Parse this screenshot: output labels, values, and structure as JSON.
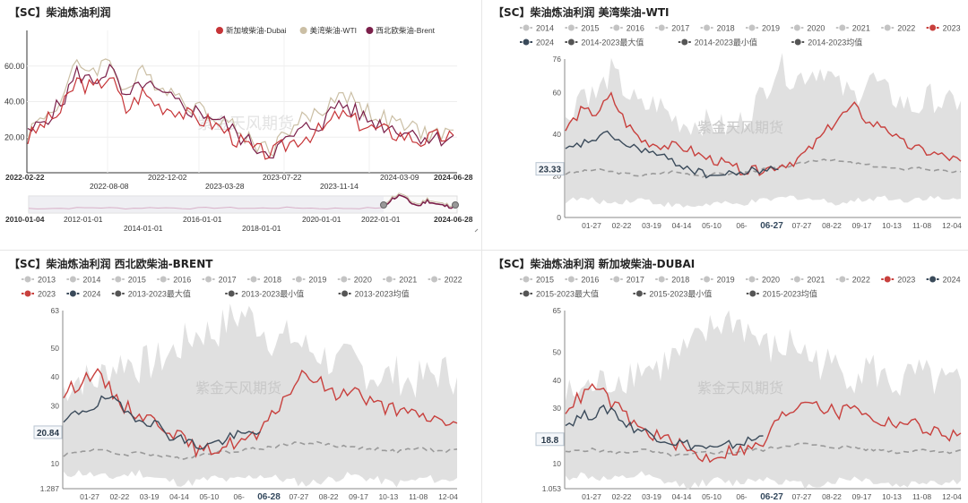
{
  "colors": {
    "gray": "#c4c4c4",
    "band": "#dddddd",
    "red": "#c8403d",
    "navy": "#3a4a5a",
    "avg": "#9a9a9a",
    "dubai": "#c63437",
    "wti": "#cbbfa5",
    "brent": "#7b1f4a",
    "axis": "#666666"
  },
  "watermark": "紫金天风期货",
  "charts": [
    {
      "id": "p1",
      "title": "【SC】柴油炼油利润",
      "chart_data": {
        "type": "line",
        "title": "【SC】柴油炼油利润",
        "xlabel": "",
        "ylabel": "",
        "ylim": [
          0,
          80
        ],
        "y_ticks": [
          "20.00",
          "40.00",
          "60.00"
        ],
        "x_ticks_row1": [
          "2022-02-22",
          "2022-12-02",
          "2023-07-22",
          "2024-03-09",
          "2024-06-28"
        ],
        "x_ticks_row2": [
          "2022-08-08",
          "2023-03-28",
          "2023-11-14"
        ],
        "legend": [
          "新加坡柴油-Dubai",
          "美湾柴油-WTI",
          "西北欧柴油-Brent"
        ],
        "legend_position": "top-right",
        "series": [
          {
            "name": "新加坡柴油-Dubai",
            "values": [
              19,
              28,
              34,
              52,
              47,
              55,
              35,
              45,
              38,
              36,
              31,
              29,
              24,
              17,
              12,
              11,
              17,
              21,
              24,
              33,
              29,
              25,
              23,
              21,
              18,
              20,
              21
            ]
          },
          {
            "name": "美湾柴油-WTI",
            "values": [
              23,
              32,
              40,
              61,
              58,
              63,
              46,
              56,
              50,
              45,
              38,
              34,
              30,
              22,
              16,
              14,
              25,
              31,
              34,
              46,
              40,
              33,
              29,
              26,
              23,
              21,
              24
            ]
          },
          {
            "name": "西北欧柴油-Brent",
            "values": [
              21,
              30,
              38,
              56,
              51,
              59,
              40,
              51,
              44,
              40,
              35,
              33,
              28,
              20,
              14,
              12,
              19,
              25,
              28,
              40,
              34,
              29,
              26,
              24,
              21,
              19,
              21
            ]
          }
        ],
        "navigator": {
          "labels_top": [
            "2010-01-04",
            "2012-01-01",
            "2016-01-01",
            "2020-01-01",
            "2022-01-01",
            "2024-06-28"
          ],
          "labels_bottom": [
            "2014-01-01",
            "2018-01-01"
          ]
        }
      }
    },
    {
      "id": "p2",
      "title": "【SC】柴油炼油利润 美湾柴油-WTI",
      "chart_data": {
        "type": "line",
        "title": "【SC】柴油炼油利润 美湾柴油-WTI",
        "xlabel": "",
        "ylabel": "",
        "ylim": [
          0,
          76
        ],
        "y_ticks": [
          "0",
          "20",
          "40",
          "60",
          "76"
        ],
        "current_value": "23.33",
        "x_ticks": [
          "01-27",
          "02-22",
          "03-19",
          "04-14",
          "05-10",
          "06-",
          "06-27",
          "07-27",
          "08-22",
          "09-17",
          "10-13",
          "11-08",
          "12-04"
        ],
        "highlight_tick": "06-27",
        "legend_row1": [
          "2014",
          "2015",
          "2016",
          "2017",
          "2018",
          "2019",
          "2020",
          "2021",
          "2022",
          "2023"
        ],
        "legend_row2": [
          "2024",
          "2014-2023最大值",
          "2014-2023最小值",
          "2014-2023均值"
        ],
        "series": [
          {
            "name": "2023",
            "values": [
              42,
              51,
              50,
              58,
              45,
              37,
              35,
              34,
              33,
              29,
              27,
              24,
              22,
              23,
              25,
              27,
              32,
              40,
              48,
              53,
              45,
              44,
              36,
              33,
              31,
              29,
              27
            ]
          },
          {
            "name": "2024",
            "values": [
              32,
              35,
              38,
              40,
              34,
              33,
              30,
              27,
              24,
              21,
              20,
              21,
              22,
              23,
              23
            ]
          },
          {
            "name": "2014-2023最大值",
            "values": [
              45,
              62,
              58,
              70,
              60,
              52,
              55,
              48,
              45,
              46,
              44,
              42,
              50,
              60,
              74,
              66,
              70,
              72,
              62,
              58,
              68,
              60,
              56,
              52,
              58,
              54,
              56
            ]
          },
          {
            "name": "2014-2023最小值",
            "values": [
              8,
              9,
              8,
              7,
              8,
              9,
              7,
              6,
              5,
              6,
              7,
              6,
              7,
              8,
              9,
              10,
              9,
              8,
              7,
              8,
              9,
              10,
              8,
              9,
              10,
              8,
              9
            ]
          },
          {
            "name": "2014-2023均值",
            "values": [
              21,
              22,
              23,
              22,
              21,
              20,
              21,
              22,
              21,
              20,
              21,
              21,
              22,
              23,
              24,
              25,
              27,
              28,
              27,
              26,
              25,
              24,
              23,
              24,
              23,
              22,
              22
            ]
          }
        ]
      }
    },
    {
      "id": "p3",
      "title": "【SC】柴油炼油利润 西北欧柴油-BRENT",
      "chart_data": {
        "type": "line",
        "title": "【SC】柴油炼油利润 西北欧柴油-BRENT",
        "xlabel": "",
        "ylabel": "",
        "ylim": [
          1.287,
          63
        ],
        "y_ticks": [
          "1.287",
          "10",
          "20",
          "30",
          "40",
          "50",
          "63"
        ],
        "current_value": "20.84",
        "x_ticks": [
          "01-27",
          "02-22",
          "03-19",
          "04-14",
          "05-10",
          "06-",
          "06-28",
          "07-27",
          "08-22",
          "09-17",
          "10-13",
          "11-08",
          "12-04"
        ],
        "highlight_tick": "06-28",
        "legend_row1": [
          "2013",
          "2014",
          "2015",
          "2016",
          "2017",
          "2018",
          "2019",
          "2020",
          "2021",
          "2022"
        ],
        "legend_row2": [
          "2023",
          "2024",
          "2013-2023最大值",
          "2013-2023最小值",
          "2013-2023均值"
        ],
        "series": [
          {
            "name": "2023",
            "values": [
              34,
              38,
              42,
              36,
              30,
              27,
              25,
              22,
              18,
              14,
              15,
              17,
              18,
              20,
              28,
              36,
              41,
              38,
              33,
              37,
              32,
              30,
              28,
              27,
              26,
              25,
              24
            ]
          },
          {
            "name": "2024",
            "values": [
              24,
              28,
              30,
              33,
              28,
              26,
              24,
              20,
              18,
              16,
              17,
              19,
              20,
              21
            ]
          },
          {
            "name": "2013-2023最大值",
            "values": [
              36,
              40,
              38,
              43,
              46,
              44,
              45,
              48,
              52,
              56,
              55,
              60,
              62,
              58,
              52,
              54,
              50,
              48,
              44,
              46,
              42,
              40,
              41,
              38,
              40,
              42,
              40
            ]
          },
          {
            "name": "2013-2023最小值",
            "values": [
              6,
              7,
              6,
              5,
              6,
              7,
              5,
              4,
              3,
              4,
              5,
              4,
              5,
              6,
              5,
              4,
              3,
              4,
              5,
              6,
              5,
              4,
              3,
              4,
              5,
              4,
              5
            ]
          },
          {
            "name": "2013-2023均值",
            "values": [
              13,
              14,
              15,
              14,
              13,
              14,
              13,
              12,
              12,
              13,
              14,
              14,
              15,
              15,
              16,
              17,
              17,
              17,
              16,
              16,
              15,
              15,
              14,
              15,
              15,
              14,
              15
            ]
          }
        ]
      }
    },
    {
      "id": "p4",
      "title": "【SC】柴油炼油利润 新加坡柴油-DUBAI",
      "chart_data": {
        "type": "line",
        "title": "【SC】柴油炼油利润 新加坡柴油-DUBAI",
        "xlabel": "",
        "ylabel": "",
        "ylim": [
          1.053,
          65
        ],
        "y_ticks": [
          "1.053",
          "10",
          "20",
          "30",
          "40",
          "50",
          "65"
        ],
        "current_value": "18.8",
        "x_ticks": [
          "01-27",
          "02-22",
          "03-19",
          "04-14",
          "05-10",
          "06-",
          "06-27",
          "07-27",
          "08-22",
          "09-17",
          "10-13",
          "11-08",
          "12-04"
        ],
        "highlight_tick": "06-27",
        "legend_row1": [
          "2015",
          "2016",
          "2017",
          "2018",
          "2019",
          "2020",
          "2021",
          "2022",
          "2023",
          "2024"
        ],
        "legend_row2": [
          "2015-2023最大值",
          "2015-2023最小值",
          "2015-2023均值"
        ],
        "series": [
          {
            "name": "2023",
            "values": [
              30,
              34,
              38,
              32,
              27,
              22,
              20,
              18,
              15,
              12,
              13,
              15,
              15,
              17,
              26,
              30,
              34,
              30,
              28,
              32,
              26,
              25,
              25,
              24,
              22,
              20,
              21
            ]
          },
          {
            "name": "2024",
            "values": [
              24,
              27,
              28,
              30,
              24,
              22,
              20,
              18,
              17,
              16,
              15,
              17,
              18,
              20
            ]
          },
          {
            "name": "2015-2023最大值",
            "values": [
              34,
              36,
              38,
              40,
              42,
              45,
              44,
              48,
              50,
              55,
              60,
              62,
              58,
              52,
              50,
              54,
              48,
              46,
              44,
              42,
              45,
              40,
              38,
              42,
              40,
              38,
              40
            ]
          },
          {
            "name": "2015-2023最小值",
            "values": [
              5,
              6,
              5,
              4,
              5,
              6,
              4,
              3,
              2,
              3,
              4,
              3,
              4,
              5,
              4,
              3,
              2,
              3,
              4,
              5,
              4,
              3,
              2,
              3,
              4,
              3,
              4
            ]
          },
          {
            "name": "2015-2023均值",
            "values": [
              14,
              15,
              15,
              14,
              14,
              15,
              14,
              13,
              13,
              14,
              14,
              14,
              15,
              15,
              16,
              17,
              17,
              16,
              16,
              16,
              15,
              15,
              14,
              15,
              15,
              14,
              15
            ]
          }
        ]
      }
    }
  ]
}
